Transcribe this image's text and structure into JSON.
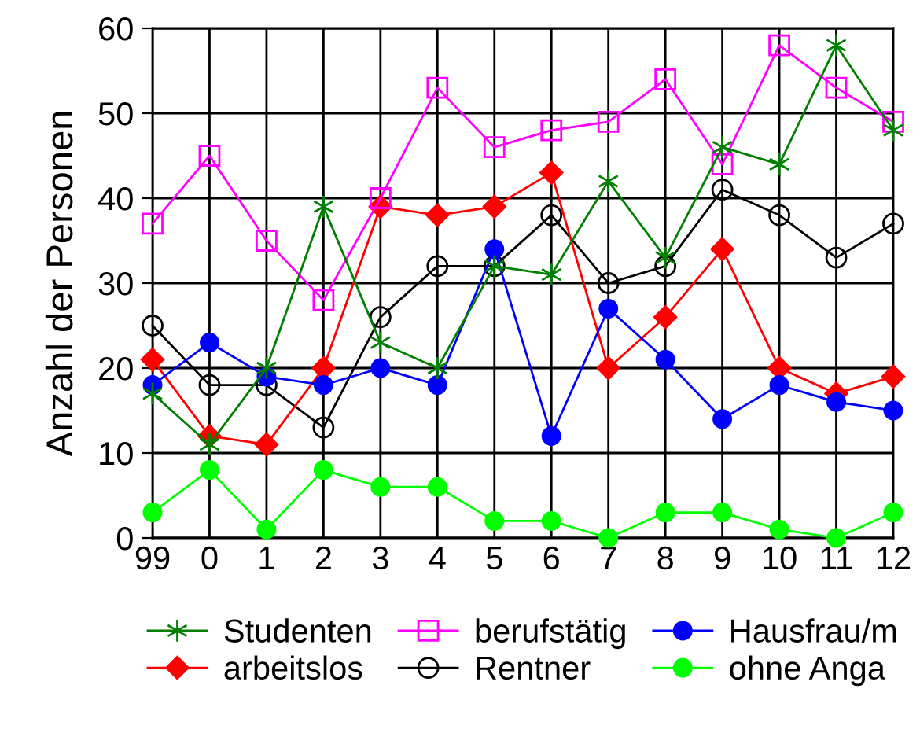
{
  "chart_data": {
    "type": "line",
    "ylabel": "Anzahl der Personen",
    "categories": [
      "99",
      "0",
      "1",
      "2",
      "3",
      "4",
      "5",
      "6",
      "7",
      "8",
      "9",
      "10",
      "11",
      "12"
    ],
    "series": [
      {
        "name": "Studenten",
        "color": "#007f00",
        "marker": "cross",
        "values": [
          17,
          11,
          20,
          39,
          23,
          20,
          32,
          31,
          42,
          33,
          46,
          44,
          58,
          48
        ]
      },
      {
        "name": "berufstätig",
        "color": "#ff00ff",
        "marker": "square",
        "values": [
          37,
          45,
          35,
          28,
          40,
          53,
          46,
          48,
          49,
          54,
          44,
          58,
          53,
          49
        ]
      },
      {
        "name": "Hausfrau/m",
        "color": "#0000ff",
        "marker": "circle",
        "values": [
          18,
          23,
          19,
          18,
          20,
          18,
          34,
          12,
          27,
          21,
          14,
          18,
          16,
          15
        ]
      },
      {
        "name": "arbeitslos",
        "color": "#ff0000",
        "marker": "diamond",
        "values": [
          21,
          12,
          11,
          20,
          39,
          38,
          39,
          43,
          20,
          26,
          34,
          20,
          17,
          19
        ]
      },
      {
        "name": "Rentner",
        "color": "#000000",
        "marker": "circle",
        "values": [
          25,
          18,
          18,
          13,
          26,
          32,
          32,
          38,
          30,
          32,
          41,
          38,
          33,
          37
        ]
      },
      {
        "name": "ohne Anga",
        "color": "#00ff00",
        "marker": "circle",
        "values": [
          3,
          8,
          1,
          8,
          6,
          6,
          2,
          2,
          0,
          3,
          3,
          1,
          0,
          3
        ]
      }
    ],
    "ylim": [
      0,
      60
    ],
    "yticks": [
      0,
      10,
      20,
      30,
      40,
      50,
      60
    ],
    "grid": true,
    "legend": "bottom"
  }
}
